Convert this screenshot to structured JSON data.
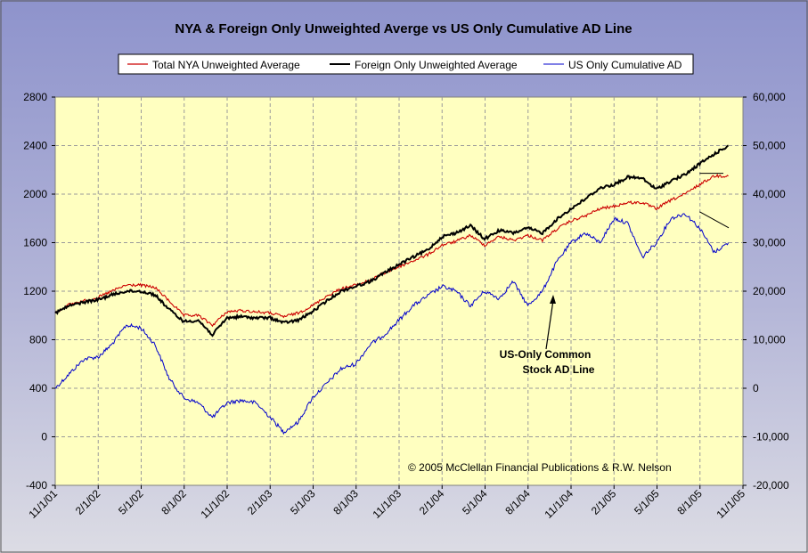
{
  "chart_data": {
    "type": "line",
    "title": "NYA & Foreign Only Unweighted Averge vs US Only Cumulative AD Line",
    "left_axis": {
      "min": -400,
      "max": 2800,
      "ticks": [
        "2800",
        "2400",
        "2000",
        "1600",
        "1200",
        "800",
        "400",
        "0",
        "-400"
      ]
    },
    "right_axis": {
      "min": -20000,
      "max": 60000,
      "ticks": [
        "60,000",
        "50,000",
        "40,000",
        "30,000",
        "20,000",
        "10,000",
        "0",
        "-10,000",
        "-20,000"
      ]
    },
    "x_ticks": [
      "11/1/01",
      "2/1/02",
      "5/1/02",
      "8/1/02",
      "11/1/02",
      "2/1/03",
      "5/1/03",
      "8/1/03",
      "11/1/03",
      "2/1/04",
      "5/1/04",
      "8/1/04",
      "11/1/04",
      "2/1/05",
      "5/1/05",
      "8/1/05",
      "11/1/05"
    ],
    "grid": true,
    "legend_position": "top",
    "colors": {
      "plot_bg": "#ffffc0",
      "grid": "#9a9a9a",
      "nya": "#cc0000",
      "foreign": "#000000",
      "us": "#0000cc"
    },
    "series": [
      {
        "name": "Total NYA Unweighted Average",
        "axis": "left",
        "dates": [
          "11/1/01",
          "12/1/01",
          "1/1/02",
          "2/1/02",
          "3/1/02",
          "4/1/02",
          "5/1/02",
          "6/1/02",
          "7/1/02",
          "8/1/02",
          "9/1/02",
          "10/1/02",
          "11/1/02",
          "12/1/02",
          "1/1/03",
          "2/1/03",
          "3/1/03",
          "4/1/03",
          "5/1/03",
          "6/1/03",
          "7/1/03",
          "8/1/03",
          "9/1/03",
          "10/1/03",
          "11/1/03",
          "12/1/03",
          "1/1/04",
          "2/1/04",
          "3/1/04",
          "4/1/04",
          "5/1/04",
          "6/1/04",
          "7/1/04",
          "8/1/04",
          "9/1/04",
          "10/1/04",
          "11/1/04",
          "12/1/04",
          "1/1/05",
          "2/1/05",
          "3/1/05",
          "4/1/05",
          "5/1/05",
          "6/1/05",
          "7/1/05",
          "8/1/05",
          "9/1/05",
          "10/1/05"
        ],
        "values": [
          1020,
          1090,
          1120,
          1150,
          1200,
          1250,
          1250,
          1230,
          1120,
          1000,
          1000,
          920,
          1030,
          1040,
          1030,
          1020,
          990,
          1020,
          1080,
          1160,
          1220,
          1250,
          1290,
          1350,
          1400,
          1450,
          1500,
          1580,
          1610,
          1660,
          1580,
          1650,
          1620,
          1660,
          1620,
          1710,
          1780,
          1820,
          1880,
          1900,
          1930,
          1930,
          1880,
          1950,
          2000,
          2080,
          2150,
          2150
        ]
      },
      {
        "name": "Foreign Only Unweighted Average",
        "axis": "left",
        "dates": [
          "11/1/01",
          "12/1/01",
          "1/1/02",
          "2/1/02",
          "3/1/02",
          "4/1/02",
          "5/1/02",
          "6/1/02",
          "7/1/02",
          "8/1/02",
          "9/1/02",
          "10/1/02",
          "11/1/02",
          "12/1/02",
          "1/1/03",
          "2/1/03",
          "3/1/03",
          "4/1/03",
          "5/1/03",
          "6/1/03",
          "7/1/03",
          "8/1/03",
          "9/1/03",
          "10/1/03",
          "11/1/03",
          "12/1/03",
          "1/1/04",
          "2/1/04",
          "3/1/04",
          "4/1/04",
          "5/1/04",
          "6/1/04",
          "7/1/04",
          "8/1/04",
          "9/1/04",
          "10/1/04",
          "11/1/04",
          "12/1/04",
          "1/1/05",
          "2/1/05",
          "3/1/05",
          "4/1/05",
          "5/1/05",
          "6/1/05",
          "7/1/05",
          "8/1/05",
          "9/1/05",
          "10/1/05"
        ],
        "values": [
          1020,
          1080,
          1110,
          1130,
          1170,
          1200,
          1200,
          1170,
          1050,
          950,
          960,
          840,
          980,
          990,
          980,
          980,
          940,
          960,
          1030,
          1120,
          1200,
          1240,
          1280,
          1350,
          1420,
          1480,
          1540,
          1650,
          1680,
          1740,
          1630,
          1700,
          1680,
          1720,
          1680,
          1790,
          1880,
          1960,
          2050,
          2080,
          2140,
          2130,
          2040,
          2110,
          2160,
          2250,
          2330,
          2400
        ]
      },
      {
        "name": "US Only Cumulative AD",
        "axis": "right",
        "dates": [
          "11/1/01",
          "12/1/01",
          "1/1/02",
          "2/1/02",
          "3/1/02",
          "4/1/02",
          "5/1/02",
          "6/1/02",
          "7/1/02",
          "8/1/02",
          "9/1/02",
          "10/1/02",
          "11/1/02",
          "12/1/02",
          "1/1/03",
          "2/1/03",
          "3/1/03",
          "4/1/03",
          "5/1/03",
          "6/1/03",
          "7/1/03",
          "8/1/03",
          "9/1/03",
          "10/1/03",
          "11/1/03",
          "12/1/03",
          "1/1/04",
          "2/1/04",
          "3/1/04",
          "4/1/04",
          "5/1/04",
          "6/1/04",
          "7/1/04",
          "8/1/04",
          "9/1/04",
          "10/1/04",
          "11/1/04",
          "12/1/04",
          "1/1/05",
          "2/1/05",
          "3/1/05",
          "4/1/05",
          "5/1/05",
          "6/1/05",
          "7/1/05",
          "8/1/05",
          "9/1/05",
          "10/1/05"
        ],
        "values": [
          0,
          3000,
          6000,
          6500,
          9000,
          13000,
          12500,
          9000,
          2000,
          -2000,
          -3000,
          -6000,
          -3000,
          -2500,
          -3000,
          -6000,
          -9000,
          -7000,
          -2000,
          1000,
          4000,
          5000,
          9000,
          11000,
          14000,
          17000,
          19000,
          21000,
          20000,
          17000,
          20000,
          18500,
          22000,
          17000,
          20000,
          26000,
          30000,
          32000,
          30000,
          35000,
          34000,
          27000,
          30000,
          35000,
          36000,
          33000,
          28000,
          30000
        ]
      }
    ],
    "annotation": {
      "line1": "US-Only Common",
      "line2": "Stock AD Line"
    },
    "copyright": "© 2005 McClellan Financial Publications & R.W. Nelson"
  }
}
